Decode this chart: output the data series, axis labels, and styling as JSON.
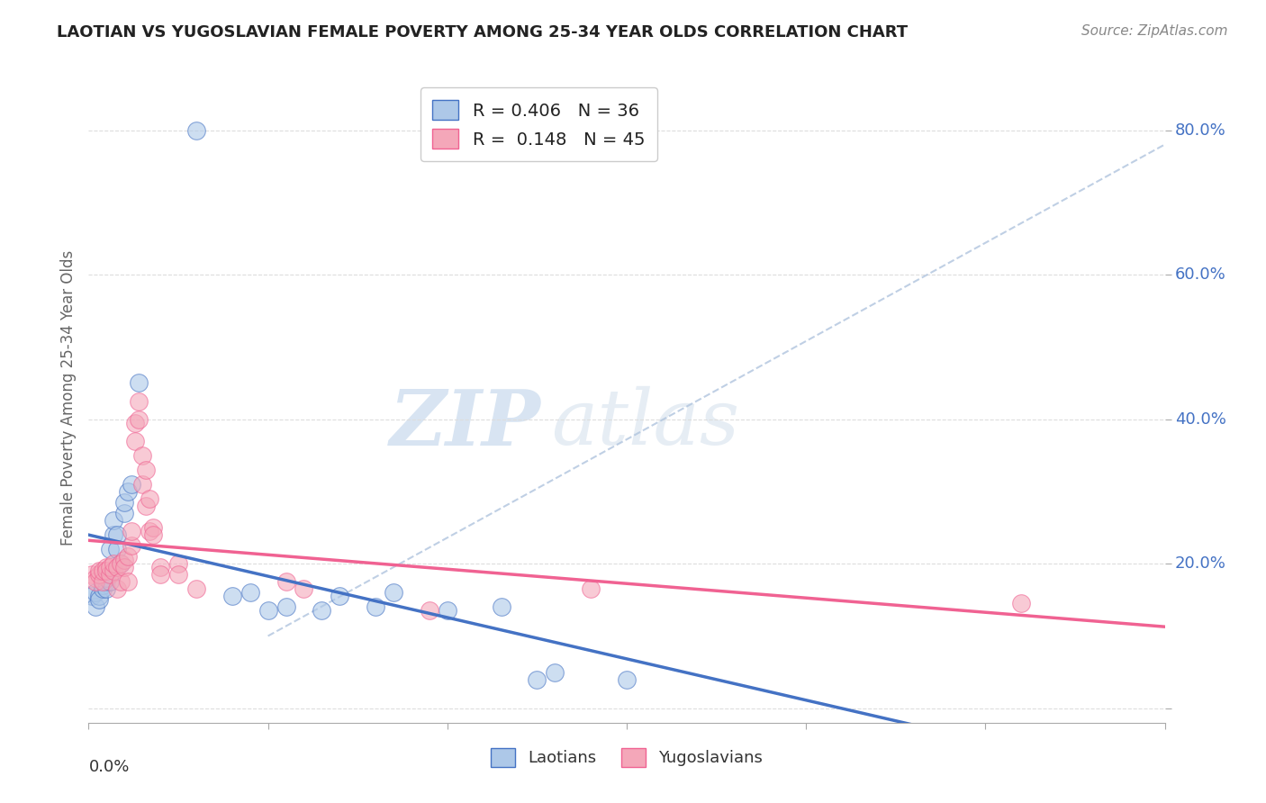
{
  "title": "LAOTIAN VS YUGOSLAVIAN FEMALE POVERTY AMONG 25-34 YEAR OLDS CORRELATION CHART",
  "source": "Source: ZipAtlas.com",
  "ylabel": "Female Poverty Among 25-34 Year Olds",
  "xlim": [
    0.0,
    0.3
  ],
  "ylim": [
    -0.02,
    0.88
  ],
  "yticks": [
    0.0,
    0.2,
    0.4,
    0.6,
    0.8
  ],
  "ytick_labels": [
    "",
    "20.0%",
    "40.0%",
    "60.0%",
    "80.0%"
  ],
  "xticks": [
    0.0,
    0.05,
    0.1,
    0.15,
    0.2,
    0.25,
    0.3
  ],
  "laotian_color": "#adc8e8",
  "yugoslavian_color": "#f4a7b9",
  "laotian_R": "0.406",
  "laotian_N": "36",
  "yugoslavian_R": "0.148",
  "yugoslavian_N": "45",
  "laotian_scatter": [
    [
      0.001,
      0.155
    ],
    [
      0.002,
      0.14
    ],
    [
      0.002,
      0.16
    ],
    [
      0.003,
      0.155
    ],
    [
      0.003,
      0.15
    ],
    [
      0.004,
      0.17
    ],
    [
      0.004,
      0.165
    ],
    [
      0.005,
      0.175
    ],
    [
      0.005,
      0.165
    ],
    [
      0.005,
      0.18
    ],
    [
      0.006,
      0.175
    ],
    [
      0.006,
      0.22
    ],
    [
      0.007,
      0.24
    ],
    [
      0.007,
      0.26
    ],
    [
      0.008,
      0.22
    ],
    [
      0.008,
      0.24
    ],
    [
      0.009,
      0.2
    ],
    [
      0.01,
      0.27
    ],
    [
      0.01,
      0.285
    ],
    [
      0.011,
      0.3
    ],
    [
      0.012,
      0.31
    ],
    [
      0.014,
      0.45
    ],
    [
      0.03,
      0.8
    ],
    [
      0.04,
      0.155
    ],
    [
      0.045,
      0.16
    ],
    [
      0.05,
      0.135
    ],
    [
      0.055,
      0.14
    ],
    [
      0.065,
      0.135
    ],
    [
      0.07,
      0.155
    ],
    [
      0.08,
      0.14
    ],
    [
      0.085,
      0.16
    ],
    [
      0.1,
      0.135
    ],
    [
      0.115,
      0.14
    ],
    [
      0.125,
      0.04
    ],
    [
      0.13,
      0.05
    ],
    [
      0.15,
      0.04
    ]
  ],
  "yugoslavian_scatter": [
    [
      0.001,
      0.185
    ],
    [
      0.002,
      0.18
    ],
    [
      0.002,
      0.175
    ],
    [
      0.003,
      0.185
    ],
    [
      0.003,
      0.19
    ],
    [
      0.004,
      0.175
    ],
    [
      0.004,
      0.19
    ],
    [
      0.005,
      0.195
    ],
    [
      0.005,
      0.19
    ],
    [
      0.006,
      0.185
    ],
    [
      0.006,
      0.195
    ],
    [
      0.007,
      0.19
    ],
    [
      0.007,
      0.2
    ],
    [
      0.008,
      0.195
    ],
    [
      0.008,
      0.165
    ],
    [
      0.009,
      0.2
    ],
    [
      0.009,
      0.175
    ],
    [
      0.01,
      0.205
    ],
    [
      0.01,
      0.195
    ],
    [
      0.011,
      0.21
    ],
    [
      0.011,
      0.175
    ],
    [
      0.012,
      0.225
    ],
    [
      0.012,
      0.245
    ],
    [
      0.013,
      0.37
    ],
    [
      0.013,
      0.395
    ],
    [
      0.014,
      0.4
    ],
    [
      0.014,
      0.425
    ],
    [
      0.015,
      0.35
    ],
    [
      0.015,
      0.31
    ],
    [
      0.016,
      0.33
    ],
    [
      0.016,
      0.28
    ],
    [
      0.017,
      0.29
    ],
    [
      0.017,
      0.245
    ],
    [
      0.018,
      0.25
    ],
    [
      0.018,
      0.24
    ],
    [
      0.02,
      0.195
    ],
    [
      0.02,
      0.185
    ],
    [
      0.025,
      0.2
    ],
    [
      0.025,
      0.185
    ],
    [
      0.03,
      0.165
    ],
    [
      0.055,
      0.175
    ],
    [
      0.06,
      0.165
    ],
    [
      0.095,
      0.135
    ],
    [
      0.14,
      0.165
    ],
    [
      0.26,
      0.145
    ]
  ],
  "laotian_line_color": "#4472c4",
  "yugoslavian_line_color": "#f06292",
  "dashed_line_color": "#b0c4de",
  "watermark_zip": "ZIP",
  "watermark_atlas": "atlas",
  "background_color": "#ffffff",
  "grid_color": "#dddddd"
}
